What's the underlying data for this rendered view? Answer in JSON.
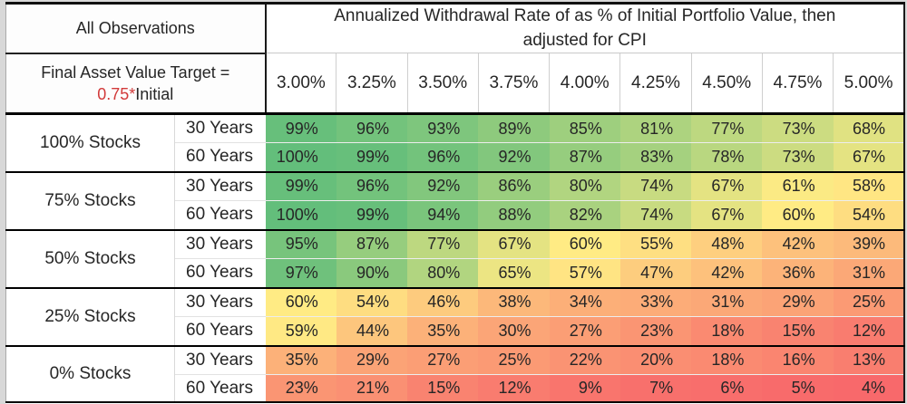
{
  "page": {
    "background": "#d8d8d8"
  },
  "header": {
    "left_title": "All Observations",
    "target_line1": "Final Asset Value Target =",
    "target_red": "0.75*",
    "target_black": "Initial",
    "rate_title_line1": "Annualized Withdrawal Rate of as % of Initial Portfolio Value, then",
    "rate_title_line2": "adjusted for CPI"
  },
  "colors": {
    "text": "#262626",
    "red_accent": "#d23a3a",
    "border_dark": "#111111",
    "gridline": "#cfcfcf"
  },
  "chart_data": {
    "type": "heatmap",
    "title": "Annualized Withdrawal Rate of as % of Initial Portfolio Value, then adjusted for CPI",
    "left_header": "All Observations",
    "note": "Final Asset Value Target = 0.75*Initial",
    "value_format": "percent",
    "columns": [
      "3.00%",
      "3.25%",
      "3.50%",
      "3.75%",
      "4.00%",
      "4.25%",
      "4.50%",
      "4.75%",
      "5.00%"
    ],
    "row_groups": [
      {
        "label": "100% Stocks",
        "rows": [
          {
            "label": "30 Years",
            "values": [
              99,
              96,
              93,
              89,
              85,
              81,
              77,
              73,
              68
            ]
          },
          {
            "label": "60 Years",
            "values": [
              100,
              99,
              96,
              92,
              87,
              83,
              78,
              73,
              67
            ]
          }
        ]
      },
      {
        "label": "75% Stocks",
        "rows": [
          {
            "label": "30 Years",
            "values": [
              99,
              96,
              92,
              86,
              80,
              74,
              67,
              61,
              58
            ]
          },
          {
            "label": "60 Years",
            "values": [
              100,
              99,
              94,
              88,
              82,
              74,
              67,
              60,
              54
            ]
          }
        ]
      },
      {
        "label": "50% Stocks",
        "rows": [
          {
            "label": "30 Years",
            "values": [
              95,
              87,
              77,
              67,
              60,
              55,
              48,
              42,
              39
            ]
          },
          {
            "label": "60 Years",
            "values": [
              97,
              90,
              80,
              65,
              57,
              47,
              42,
              36,
              31
            ]
          }
        ]
      },
      {
        "label": "25% Stocks",
        "rows": [
          {
            "label": "30 Years",
            "values": [
              60,
              54,
              46,
              38,
              34,
              33,
              31,
              29,
              25
            ]
          },
          {
            "label": "60 Years",
            "values": [
              59,
              44,
              35,
              30,
              27,
              23,
              18,
              15,
              12
            ]
          }
        ]
      },
      {
        "label": "0% Stocks",
        "rows": [
          {
            "label": "30 Years",
            "values": [
              35,
              29,
              27,
              25,
              22,
              20,
              18,
              16,
              13
            ]
          },
          {
            "label": "60 Years",
            "values": [
              23,
              21,
              15,
              12,
              9,
              7,
              6,
              5,
              4
            ]
          }
        ]
      }
    ],
    "color_scale": {
      "min_value": 4,
      "min_color": "#F8696B",
      "mid_value": 60,
      "mid_color": "#FFEB84",
      "max_value": 100,
      "max_color": "#63BE7B"
    },
    "layout": {
      "legend": false,
      "grid": true,
      "values_shown_in_cells": true
    }
  }
}
